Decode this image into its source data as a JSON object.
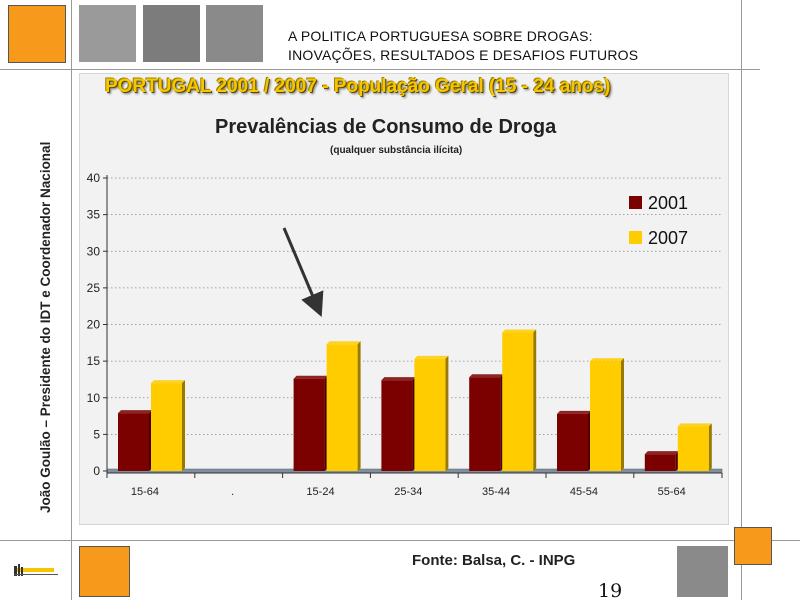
{
  "header": {
    "title_line1": "A POLITICA PORTUGUESA SOBRE DROGAS:",
    "title_line2": "INOVAÇÕES, RESULTADOS E DESAFIOS FUTUROS"
  },
  "sidebar": {
    "author": "João Goulão – Presidente do IDT e Coordenador Nacional"
  },
  "banner": "PORTUGAL 2001 / 2007 - População Geral (15 - 24 anos)",
  "footer": {
    "source": "Fonte: Balsa, C. - INPG",
    "page_number": "19"
  },
  "colors": {
    "series_2001": "#7b0000",
    "series_2007": "#ffcc00",
    "accent_orange": "#f79a1c",
    "banner_text": "#f7c600"
  },
  "chart_data": {
    "type": "bar",
    "title": "Prevalências de Consumo de Droga",
    "subtitle": "(qualquer substância ilícita)",
    "xlabel": "",
    "ylabel": "",
    "categories": [
      "15-64",
      ".",
      "15-24",
      "25-34",
      "35-44",
      "45-54",
      "55-64"
    ],
    "series": [
      {
        "name": "2001",
        "values": [
          7.9,
          null,
          12.6,
          12.4,
          12.8,
          7.8,
          2.3
        ]
      },
      {
        "name": "2007",
        "values": [
          12.0,
          null,
          17.3,
          15.3,
          18.9,
          15.0,
          6.1
        ]
      }
    ],
    "ylim": [
      0,
      40
    ],
    "yticks": [
      0,
      5,
      10,
      15,
      20,
      25,
      30,
      35,
      40
    ],
    "grid": true,
    "legend_position": "top-right",
    "annotation": "arrow pointing at 15-24"
  }
}
